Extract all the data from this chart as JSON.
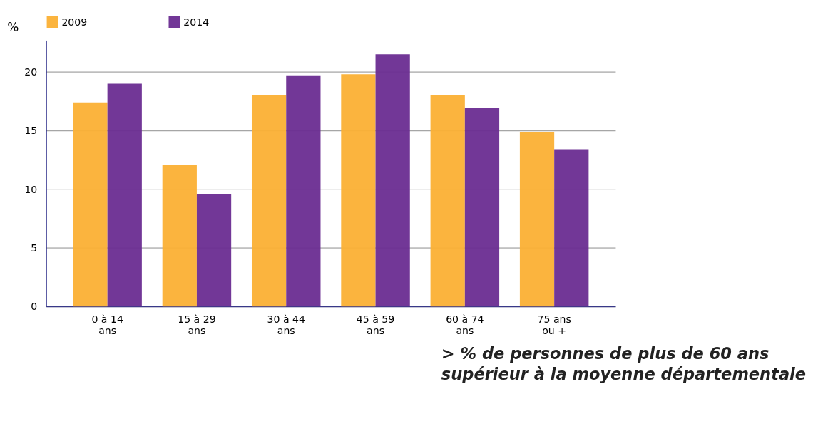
{
  "chart_data": {
    "type": "bar",
    "ylabel": "%",
    "categories": [
      "0 à 14 ans",
      "15 à 29 ans",
      "30 à 44 ans",
      "45 à 59 ans",
      "60 à 74 ans",
      "75 ans ou +"
    ],
    "series": [
      {
        "name": "2009",
        "color": "#fbb034",
        "values": [
          17.4,
          12.1,
          18.0,
          19.8,
          18.0,
          14.9
        ]
      },
      {
        "name": "2014",
        "color": "#6a2c91",
        "values": [
          19.0,
          9.6,
          19.7,
          21.5,
          16.9,
          13.4
        ]
      }
    ],
    "ylim": [
      0,
      22.7
    ],
    "yticks": [
      0,
      5,
      10,
      15,
      20
    ],
    "grid": "y",
    "legend": "top",
    "annotations": [
      "> % de personnes de plus de 60 ans supérieur à la moyenne départementale"
    ]
  }
}
